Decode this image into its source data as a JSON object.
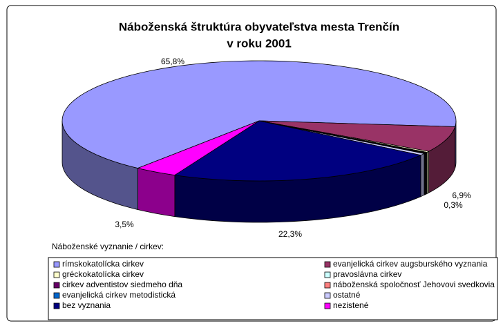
{
  "chart_data": {
    "type": "pie3d",
    "title": [
      "Náboženská štruktúra obyvateľstva mesta Trenčín",
      "v roku 2001"
    ],
    "legend_title": "Náboženské vyznanie / cirkev:",
    "categories": [
      "rímskokatolícka cirkev",
      "evanjelická cirkev augsburského vyznania",
      "gréckokatolícka cirkev",
      "pravoslávna cirkev",
      "cirkev adventistov siedmeho dňa",
      "náboženská spoločnosť Jehovovi svedkovia",
      "evanjelická cirkev metodistická",
      "ostatné",
      "bez vyznania",
      "nezistené"
    ],
    "values": [
      65.8,
      6.9,
      0.3,
      0.1,
      0.1,
      0.1,
      0.1,
      0.5,
      22.3,
      3.5
    ],
    "value_labels": [
      "65,8%",
      "6,9%",
      "0,3%",
      null,
      null,
      null,
      null,
      null,
      "22,3%",
      "3,5%"
    ],
    "colors": [
      "#9999ff",
      "#993366",
      "#ffffcc",
      "#ccffff",
      "#660066",
      "#ff8080",
      "#0066cc",
      "#ccccff",
      "#000080",
      "#ff00ff"
    ],
    "legend": "bottom"
  }
}
